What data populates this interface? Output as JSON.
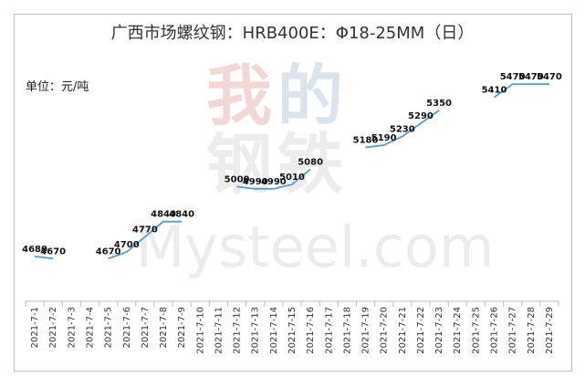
{
  "title": "广西市场螺纹钢：HRB400E：Φ18-25MM（日）",
  "unit_label": "单位：元/吨",
  "watermark": {
    "chinese": [
      "我",
      "的",
      "钢",
      "铁"
    ],
    "english": "Mysteel.com"
  },
  "colors": {
    "line": "#5b9bd5",
    "axis": "#bfbfbf",
    "watermark_red": "#f3d6d6",
    "watermark_blue": "#dbe3ef",
    "watermark_gray": "#ececec"
  },
  "chart_data": {
    "type": "line",
    "title": "广西市场螺纹钢：HRB400E：Φ18-25MM（日）",
    "ylabel": "单位：元/吨",
    "xlabel": "",
    "ylim": [
      4600,
      5500
    ],
    "grid": false,
    "legend": "none",
    "categories": [
      "2021-7-1",
      "2021-7-2",
      "2021-7-3",
      "2021-7-4",
      "2021-7-5",
      "2021-7-6",
      "2021-7-7",
      "2021-7-8",
      "2021-7-9",
      "2021-7-10",
      "2021-7-11",
      "2021-7-12",
      "2021-7-13",
      "2021-7-14",
      "2021-7-15",
      "2021-7-16",
      "2021-7-17",
      "2021-7-18",
      "2021-7-19",
      "2021-7-20",
      "2021-7-21",
      "2021-7-22",
      "2021-7-23",
      "2021-7-24",
      "2021-7-25",
      "2021-7-26",
      "2021-7-27",
      "2021-7-28",
      "2021-7-29"
    ],
    "values": [
      4680,
      4670,
      null,
      null,
      4670,
      4700,
      4770,
      4840,
      4840,
      null,
      null,
      5000,
      4990,
      4990,
      5010,
      5080,
      null,
      null,
      5180,
      5190,
      5230,
      5290,
      5350,
      null,
      null,
      5410,
      5470,
      5470,
      5470
    ]
  }
}
